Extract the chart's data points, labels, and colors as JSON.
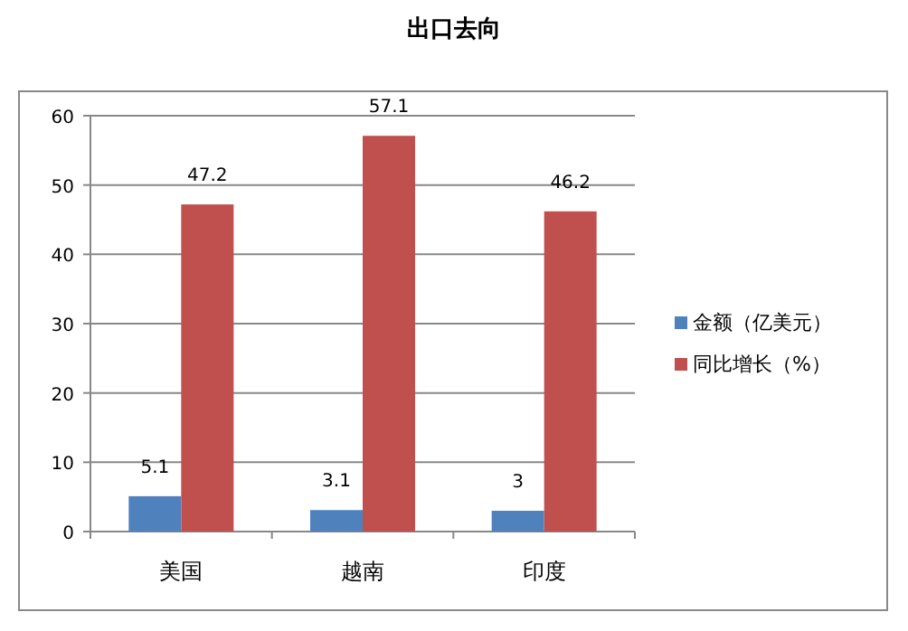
{
  "chart_data": {
    "type": "bar",
    "title": "出口去向",
    "categories": [
      "美国",
      "越南",
      "印度"
    ],
    "series": [
      {
        "name": "金额（亿美元）",
        "color": "#4f81bd",
        "values": [
          5.1,
          3.1,
          3
        ]
      },
      {
        "name": "同比增长（%）",
        "color": "#c0504d",
        "values": [
          47.2,
          57.1,
          46.2
        ]
      }
    ],
    "ylim": [
      0,
      60
    ],
    "yticks": [
      0,
      10,
      20,
      30,
      40,
      50,
      60
    ],
    "grid": "y",
    "legend": "right",
    "data_labels": true
  }
}
